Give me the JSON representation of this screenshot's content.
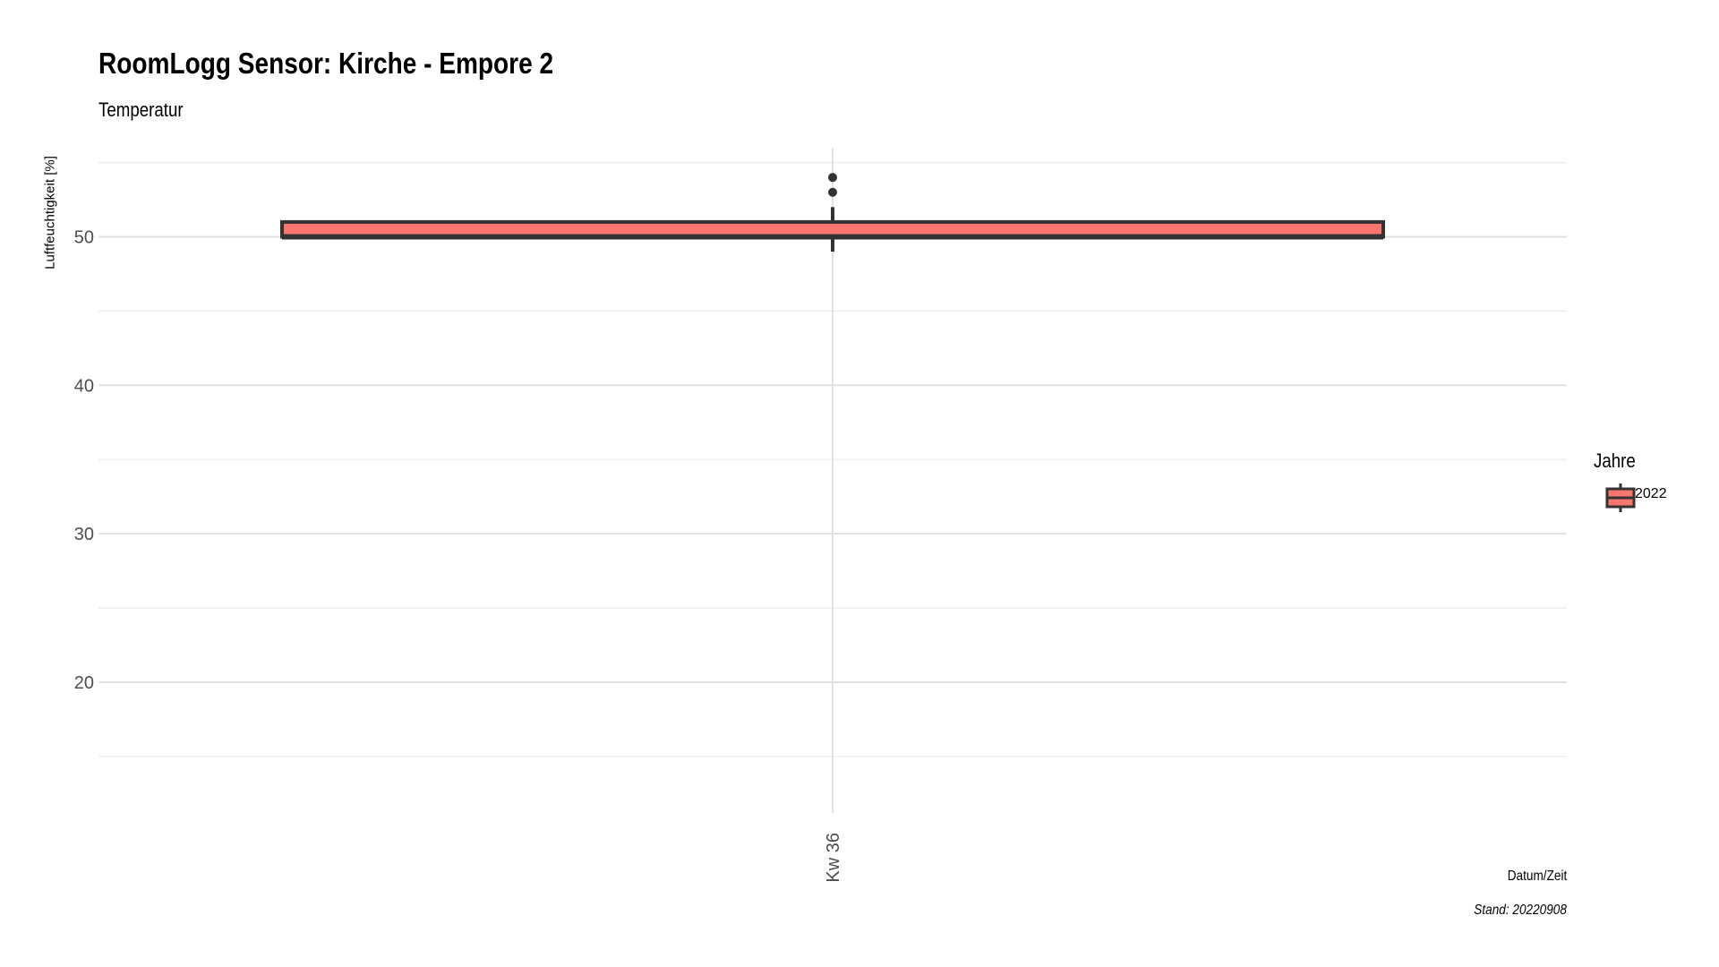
{
  "chart_data": {
    "type": "box",
    "title": "RoomLogg Sensor: Kirche - Empore 2",
    "subtitle": "Temperatur",
    "xlabel": "Datum/Zeit",
    "ylabel": "Luftfeuchtigkeit [%]",
    "caption": "Stand: 20220908",
    "categories": [
      "Kw 36"
    ],
    "ylim": [
      13,
      56
    ],
    "y_ticks": [
      20,
      30,
      40,
      50
    ],
    "grid": true,
    "legend": {
      "title": "Jahre",
      "position": "right",
      "entries": [
        "2022"
      ]
    },
    "series": [
      {
        "name": "2022",
        "color": "#F8766D",
        "boxes": [
          {
            "category": "Kw 36",
            "whisker_low": 49,
            "q1": 50,
            "median": 50,
            "q3": 51,
            "whisker_high": 52,
            "outliers": [
              53,
              54
            ]
          }
        ]
      }
    ]
  }
}
